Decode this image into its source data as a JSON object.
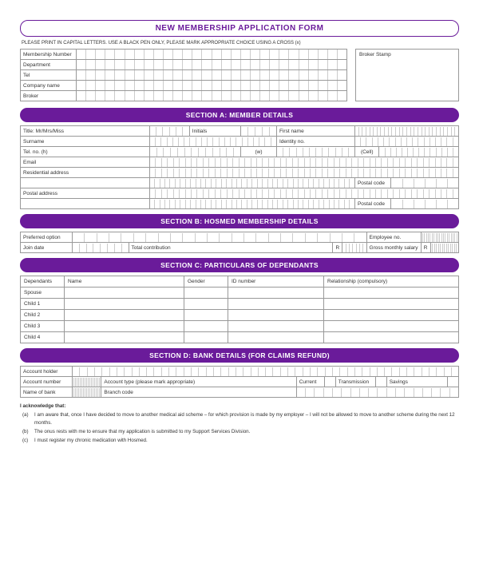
{
  "colors": {
    "accent": "#6a1b9a",
    "border": "#999",
    "cell_border": "#ccc",
    "text": "#333"
  },
  "title": "NEW MEMBERSHIP APPLICATION FORM",
  "instructions": "PLEASE PRINT IN CAPITAL LETTERS. USE A BLACK PEN ONLY, PLEASE MARK APPROPRIATE CHOICE USING A CROSS (x)",
  "top_fields": {
    "membership_number": "Membership Number",
    "department": "Department",
    "tel": "Tel",
    "company_name": "Company name",
    "broker": "Broker"
  },
  "broker_stamp": "Broker Stamp",
  "sections": {
    "a": "SECTION A: MEMBER DETAILS",
    "b": "SECTION B: HOSMED MEMBERSHIP DETAILS",
    "c": "SECTION C: PARTICULARS OF DEPENDANTS",
    "d": "SECTION D: BANK DETAILS (FOR CLAIMS REFUND)"
  },
  "section_a": {
    "title": "Title: Mr/Mrs/Miss",
    "initials": "Initials",
    "first_name": "First name",
    "surname": "Surname",
    "identity_no": "Identity no.",
    "tel_h": "Tel. no. (h)",
    "w": "(w)",
    "cell": "(Cell)",
    "email": "Email",
    "residential": "Residential address",
    "postal_code": "Postal code",
    "postal_address": "Postal address"
  },
  "section_b": {
    "preferred_option": "Preferred option",
    "employee_no": "Employee no.",
    "join_date": "Join date",
    "total_contribution": "Total contribution",
    "r1": "R",
    "gross_salary": "Gross monthly salary",
    "r2": "R"
  },
  "section_c": {
    "headers": {
      "dependants": "Dependants",
      "name": "Name",
      "gender": "Gender",
      "id_number": "ID number",
      "relationship": "Relationship (compulsory)"
    },
    "rows": [
      "Spouse",
      "Child 1",
      "Child 2",
      "Child 3",
      "Child 4"
    ]
  },
  "section_d": {
    "account_holder": "Account holder",
    "account_number": "Account number",
    "account_type": "Account type (please mark appropriate)",
    "current": "Current",
    "transmission": "Transmission",
    "savings": "Savings",
    "name_of_bank": "Name of bank",
    "branch_code": "Branch code"
  },
  "ack": {
    "heading": "I acknowledge that:",
    "a": "I am aware that, once I have decided to move to another medical aid scheme – for which provision is made by my employer – I will not be allowed to move to another scheme during the next 12 months.",
    "b": "The onus rests with me to ensure that my application is submitted to my Support Services Division.",
    "c": "I must register my chronic medication with Hosmed."
  }
}
